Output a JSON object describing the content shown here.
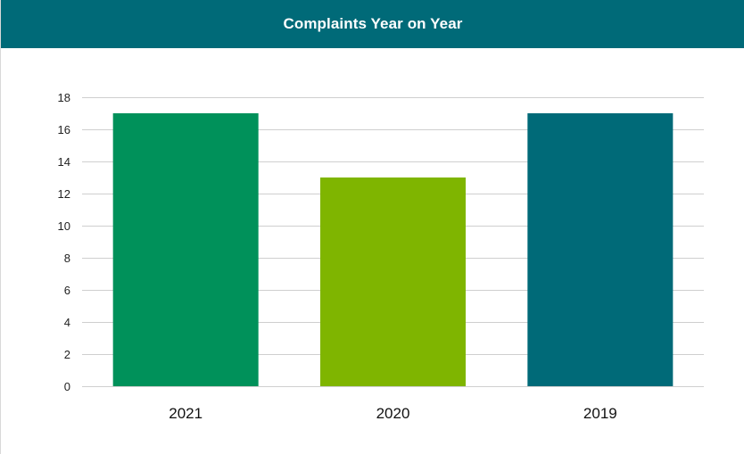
{
  "header": {
    "title": "Complaints Year on Year"
  },
  "colors": {
    "title_bar": "#006a78",
    "grid": "#cfcfcf",
    "bars": [
      "#00915a",
      "#7fb500",
      "#006a78"
    ]
  },
  "chart_data": {
    "type": "bar",
    "title": "Complaints Year on Year",
    "xlabel": "",
    "ylabel": "",
    "categories": [
      "2021",
      "2020",
      "2019"
    ],
    "values": [
      17,
      13,
      17
    ],
    "ylim": [
      0,
      18
    ],
    "yticks": [
      0,
      2,
      4,
      6,
      8,
      10,
      12,
      14,
      16,
      18
    ],
    "grid": true,
    "legend": "none"
  }
}
